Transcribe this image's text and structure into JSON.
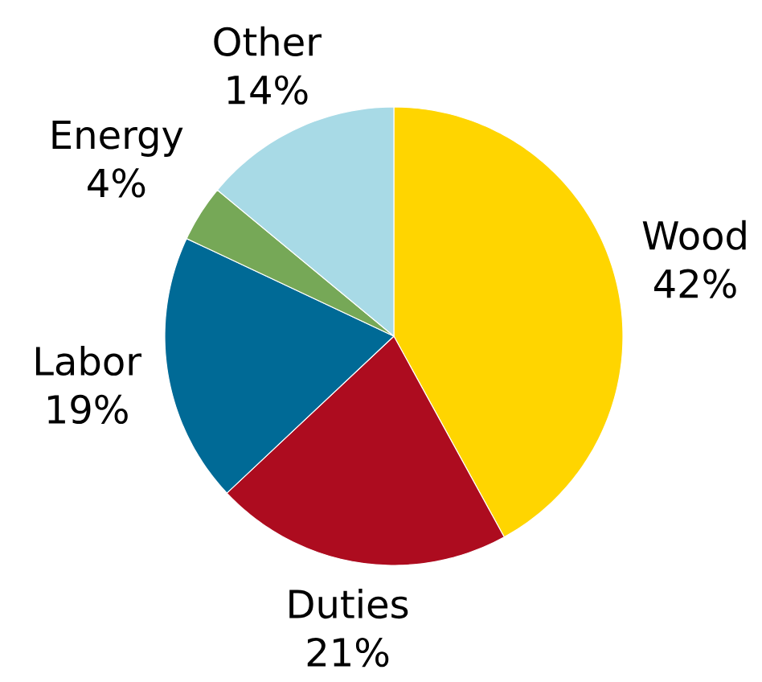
{
  "chart_data": {
    "type": "pie",
    "categories": [
      "Wood",
      "Duties",
      "Labor",
      "Energy",
      "Other"
    ],
    "values": [
      42,
      21,
      19,
      4,
      14
    ],
    "colors": [
      "#ffd500",
      "#ad0c1f",
      "#006a96",
      "#76a857",
      "#a8dae6"
    ],
    "value_labels": [
      "42%",
      "21%",
      "19%",
      "4%",
      "14%"
    ]
  }
}
